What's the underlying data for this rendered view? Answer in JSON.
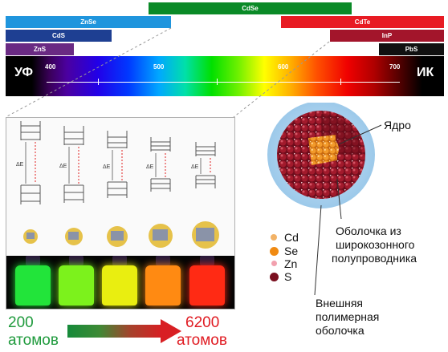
{
  "materials": {
    "cdse": "CdSe",
    "znse": "ZnSe",
    "cdte": "CdTe",
    "cds": "CdS",
    "inp": "InP",
    "zns": "ZnS",
    "pbs": "PbS"
  },
  "spectrum": {
    "left_label": "УФ",
    "right_label": "ИК",
    "ticks": [
      "400",
      "500",
      "600",
      "700"
    ]
  },
  "progression": {
    "start_count": "200",
    "start_unit": "атомов",
    "end_count": "6200",
    "end_unit": "атомов",
    "bottle_colors": [
      "#22e43a",
      "#7cf21c",
      "#e9ee10",
      "#ff8a12",
      "#ff2a14"
    ]
  },
  "energy_label": "ΔE",
  "structure": {
    "core_label": "Ядро",
    "shell_label": "Оболочка из широкозонного полупроводника",
    "shell_lines": [
      "Оболочка из",
      "широкозонного",
      "полупроводника"
    ],
    "polymer_lines": [
      "Внешняя",
      "полимерная",
      "оболочка"
    ]
  },
  "legend": [
    {
      "label": "Cd",
      "color": "#f2b266"
    },
    {
      "label": "Se",
      "color": "#f08a12"
    },
    {
      "label": "Zn",
      "color": "#f2a0ae"
    },
    {
      "label": "S",
      "color": "#7a0f1f"
    }
  ]
}
